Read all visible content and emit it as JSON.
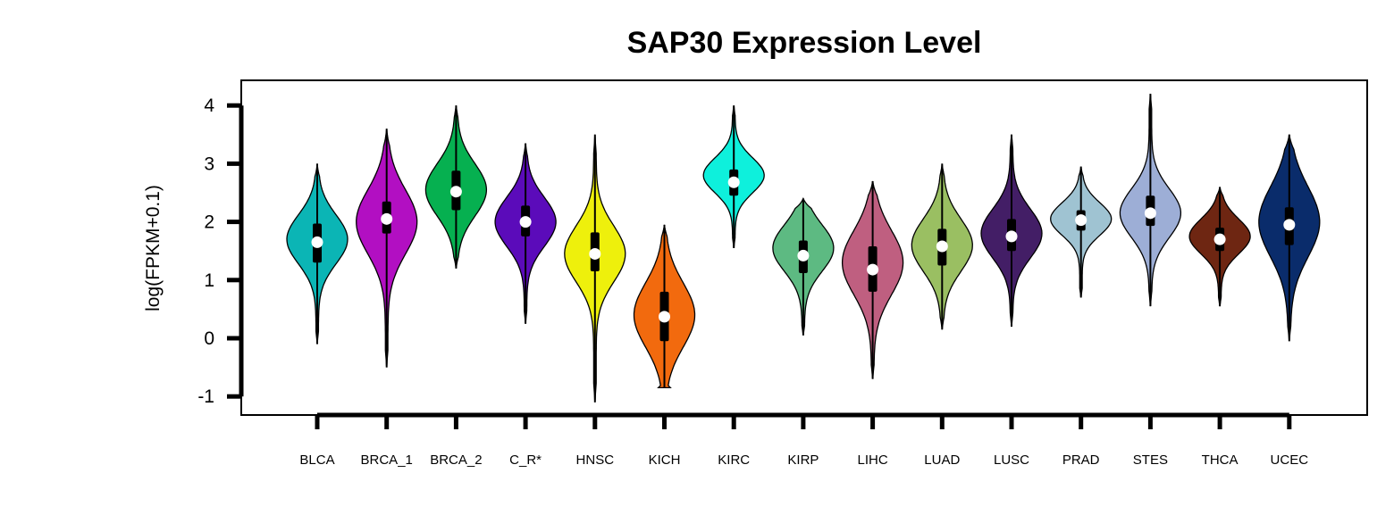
{
  "chart_data": {
    "type": "violin",
    "title": "SAP30 Expression Level",
    "ylabel": "log(FPKM+0.1)",
    "xlabel": "",
    "ylim": [
      -1.3,
      4.45
    ],
    "yticks": [
      "-1",
      "0",
      "1",
      "2",
      "3",
      "4"
    ],
    "grid": false,
    "legend": "none",
    "categories": [
      "BLCA",
      "BRCA_1",
      "BRCA_2",
      "C_R*",
      "HNSC",
      "KICH",
      "KIRC",
      "KIRP",
      "LIHC",
      "LUAD",
      "LUSC",
      "PRAD",
      "STES",
      "THCA",
      "UCEC"
    ],
    "series": [
      {
        "category": "BLCA",
        "color": "#0BB5B5",
        "min": -0.1,
        "max": 3.0,
        "q1": 1.3,
        "median": 1.65,
        "q3": 1.97,
        "mode": 1.7,
        "spread": 0.42
      },
      {
        "category": "BRCA_1",
        "color": "#B20FC2",
        "min": -0.5,
        "max": 3.6,
        "q1": 1.8,
        "median": 2.05,
        "q3": 2.35,
        "mode": 2.0,
        "spread": 0.55
      },
      {
        "category": "BRCA_2",
        "color": "#06B050",
        "min": 1.2,
        "max": 4.0,
        "q1": 2.2,
        "median": 2.52,
        "q3": 2.88,
        "mode": 2.55,
        "spread": 0.45
      },
      {
        "category": "C_R*",
        "color": "#5B0BBA",
        "min": 0.25,
        "max": 3.35,
        "q1": 1.75,
        "median": 2.0,
        "q3": 2.28,
        "mode": 2.0,
        "spread": 0.42
      },
      {
        "category": "HNSC",
        "color": "#EEF00C",
        "min": -1.1,
        "max": 3.5,
        "q1": 1.15,
        "median": 1.45,
        "q3": 1.82,
        "mode": 1.45,
        "spread": 0.48
      },
      {
        "category": "KICH",
        "color": "#F26A0E",
        "min": -0.85,
        "max": 1.95,
        "q1": -0.05,
        "median": 0.37,
        "q3": 0.8,
        "mode": 0.4,
        "spread": 0.55,
        "flatBottom": true
      },
      {
        "category": "KIRC",
        "color": "#0EF0DC",
        "min": 1.55,
        "max": 4.0,
        "q1": 2.45,
        "median": 2.68,
        "q3": 2.9,
        "mode": 2.8,
        "spread": 0.3
      },
      {
        "category": "KIRP",
        "color": "#5DBA82",
        "min": 0.05,
        "max": 2.4,
        "q1": 1.12,
        "median": 1.42,
        "q3": 1.68,
        "mode": 1.55,
        "spread": 0.4
      },
      {
        "category": "LIHC",
        "color": "#BF5F80",
        "min": -0.7,
        "max": 2.7,
        "q1": 0.8,
        "median": 1.18,
        "q3": 1.58,
        "mode": 1.3,
        "spread": 0.55
      },
      {
        "category": "LUAD",
        "color": "#9ABF62",
        "min": 0.15,
        "max": 3.0,
        "q1": 1.25,
        "median": 1.58,
        "q3": 1.88,
        "mode": 1.6,
        "spread": 0.45
      },
      {
        "category": "LUSC",
        "color": "#431E66",
        "min": 0.2,
        "max": 3.5,
        "q1": 1.5,
        "median": 1.75,
        "q3": 2.05,
        "mode": 1.8,
        "spread": 0.42
      },
      {
        "category": "PRAD",
        "color": "#9FC3D2",
        "min": 0.7,
        "max": 2.95,
        "q1": 1.85,
        "median": 2.03,
        "q3": 2.2,
        "mode": 2.05,
        "spread": 0.28
      },
      {
        "category": "STES",
        "color": "#9DAED6",
        "min": 0.55,
        "max": 4.2,
        "q1": 1.93,
        "median": 2.15,
        "q3": 2.45,
        "mode": 2.15,
        "spread": 0.42
      },
      {
        "category": "THCA",
        "color": "#6E2612",
        "min": 0.55,
        "max": 2.6,
        "q1": 1.5,
        "median": 1.7,
        "q3": 1.9,
        "mode": 1.75,
        "spread": 0.3
      },
      {
        "category": "UCEC",
        "color": "#0A2C6B",
        "min": -0.05,
        "max": 3.5,
        "q1": 1.6,
        "median": 1.95,
        "q3": 2.25,
        "mode": 2.0,
        "spread": 0.6
      }
    ]
  }
}
